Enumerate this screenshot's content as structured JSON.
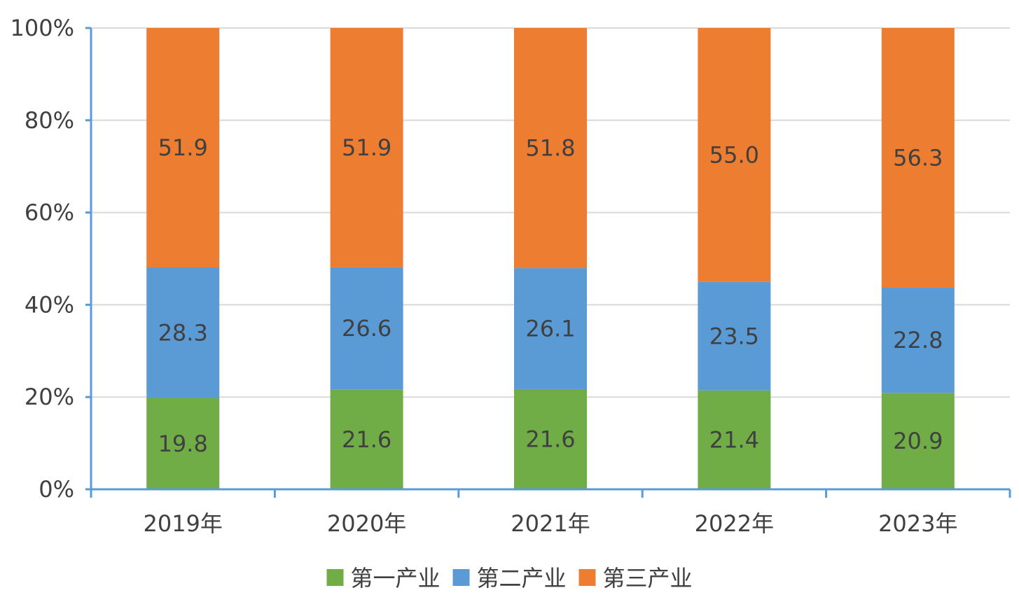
{
  "chart_data": {
    "type": "bar",
    "stacked": true,
    "percent_stacked": true,
    "categories": [
      "2019年",
      "2020年",
      "2021年",
      "2022年",
      "2023年"
    ],
    "series": [
      {
        "name": "第一产业",
        "values": [
          19.8,
          21.6,
          21.6,
          21.4,
          20.9
        ],
        "color": "#70AD47"
      },
      {
        "name": "第二产业",
        "values": [
          28.3,
          26.6,
          26.1,
          23.5,
          22.8
        ],
        "color": "#5B9BD5"
      },
      {
        "name": "第三产业",
        "values": [
          51.9,
          51.9,
          51.8,
          55.0,
          56.3
        ],
        "color": "#ED7D31"
      }
    ],
    "value_labels": [
      [
        "19.8",
        "21.6",
        "21.6",
        "21.4",
        "20.9"
      ],
      [
        "28.3",
        "26.6",
        "26.1",
        "23.5",
        "22.8"
      ],
      [
        "51.9",
        "51.9",
        "51.8",
        "55.0",
        "56.3"
      ]
    ],
    "y_ticks": [
      "0%",
      "20%",
      "40%",
      "60%",
      "80%",
      "100%"
    ],
    "ylim": [
      0,
      100
    ],
    "grid": true,
    "legend_position": "bottom",
    "title": "",
    "xlabel": "",
    "ylabel": "",
    "colors": {
      "axis": "#5B9BD5",
      "grid": "#D9D9D9",
      "text": "#404040"
    }
  }
}
